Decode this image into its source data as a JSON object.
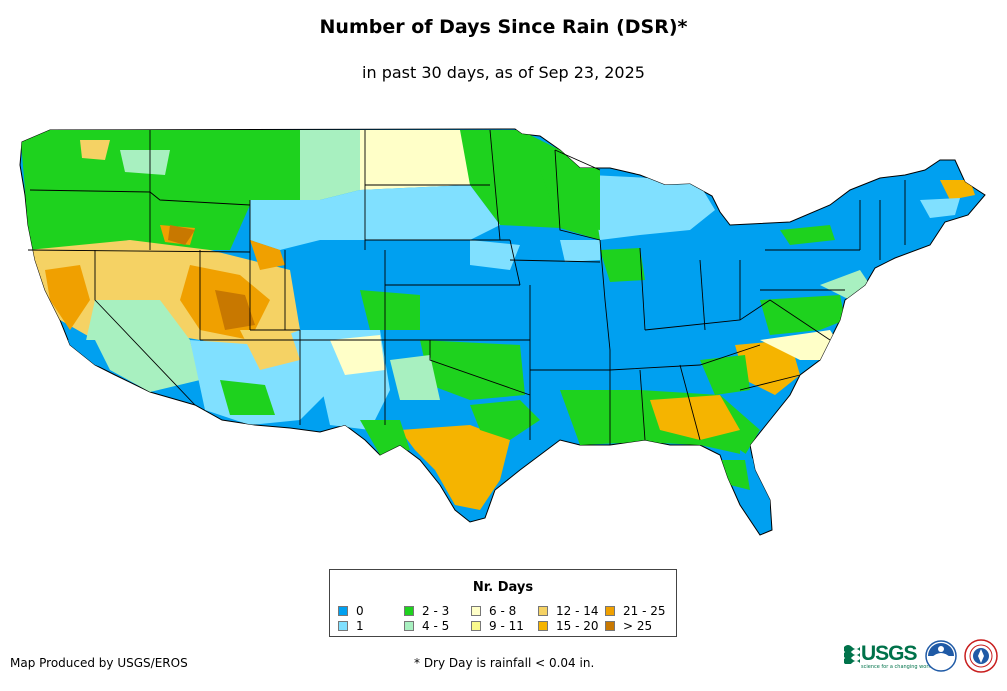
{
  "title": "Number of Days Since Rain (DSR)*",
  "subtitle": "in past 30 days, as of Sep 23, 2025",
  "legend": {
    "title": "Nr. Days",
    "items": [
      {
        "label": "0",
        "color": "#00a0f0"
      },
      {
        "label": "1",
        "color": "#80e0ff"
      },
      {
        "label": "2 - 3",
        "color": "#1ed21e"
      },
      {
        "label": "4 - 5",
        "color": "#a8f0c0"
      },
      {
        "label": "6 - 8",
        "color": "#ffffc8"
      },
      {
        "label": "9 - 11",
        "color": "#fafa8c"
      },
      {
        "label": "12 - 14",
        "color": "#f5d264"
      },
      {
        "label": "15 - 20",
        "color": "#f5b400"
      },
      {
        "label": "21 - 25",
        "color": "#f0a000"
      },
      {
        "label": "> 25",
        "color": "#c87800"
      }
    ]
  },
  "footer": {
    "credit": "Map Produced by USGS/EROS",
    "note": "* Dry Day is rainfall < 0.04 in."
  },
  "logos": {
    "usgs": "USGS",
    "usgs_tagline": "science for a changing world",
    "usgs_color": "#00724a",
    "noaa_color": "#1f5aa6"
  }
}
